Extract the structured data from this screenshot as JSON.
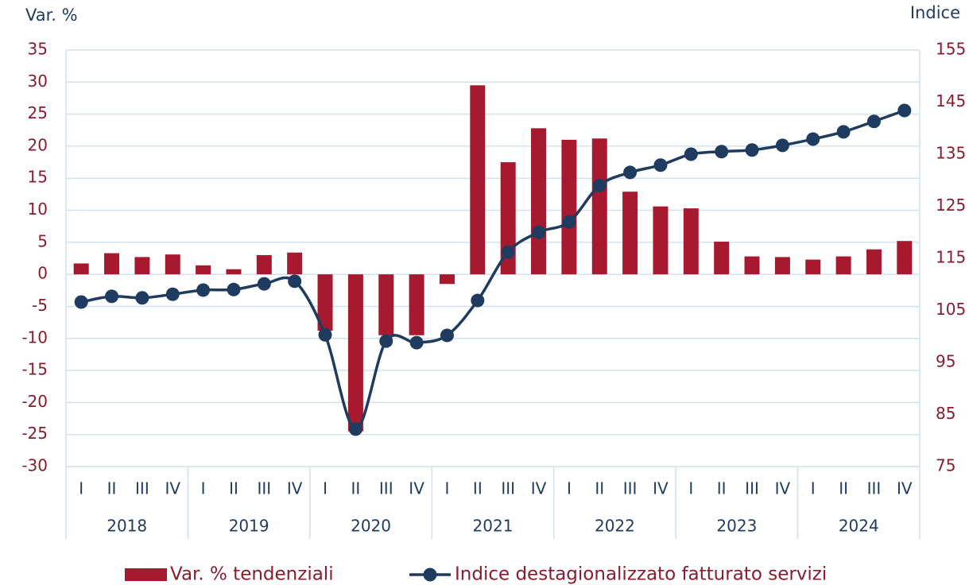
{
  "chart_data": {
    "type": "bar_line",
    "y_label": "Var. %",
    "y2_label": "Indice",
    "categories": [
      "I",
      "II",
      "III",
      "IV",
      "I",
      "II",
      "III",
      "IV",
      "I",
      "II",
      "III",
      "IV",
      "I",
      "II",
      "III",
      "IV",
      "I",
      "II",
      "III",
      "IV",
      "I",
      "II",
      "III",
      "IV",
      "I",
      "II",
      "III",
      "IV"
    ],
    "groups": [
      "2018",
      "2019",
      "2020",
      "2021",
      "2022",
      "2023",
      "2024"
    ],
    "series": [
      {
        "name": "Var. % tendenziali",
        "type": "bar",
        "color": "#a6192e",
        "axis": "y",
        "values": [
          1.7,
          3.3,
          2.7,
          3.1,
          1.4,
          0.8,
          3.0,
          3.4,
          -8.8,
          -24.5,
          -9.5,
          -9.5,
          -1.5,
          29.5,
          17.5,
          22.8,
          21.0,
          21.2,
          12.9,
          10.6,
          10.3,
          5.1,
          2.8,
          2.7,
          2.3,
          2.8,
          3.9,
          5.2
        ]
      },
      {
        "name": "Indice destagionalizzato fatturato servizi",
        "type": "line",
        "color": "#1f3b5f",
        "axis": "y2",
        "values": [
          106.6,
          107.7,
          107.4,
          108.1,
          108.9,
          109.0,
          110.1,
          110.6,
          100.3,
          82.2,
          99.1,
          98.8,
          100.2,
          106.9,
          116.2,
          120.0,
          122.0,
          129.0,
          131.5,
          132.9,
          135.0,
          135.5,
          135.8,
          136.7,
          137.9,
          139.3,
          141.3,
          143.4
        ]
      }
    ],
    "ylim": [
      -30,
      35
    ],
    "yticks": [
      -30,
      -25,
      -20,
      -15,
      -10,
      -5,
      0,
      5,
      10,
      15,
      20,
      25,
      30,
      35
    ],
    "y2lim": [
      75,
      155
    ],
    "y2ticks": [
      75,
      85,
      95,
      105,
      115,
      125,
      135,
      145,
      155
    ],
    "grid": true,
    "legend": "bottom"
  }
}
